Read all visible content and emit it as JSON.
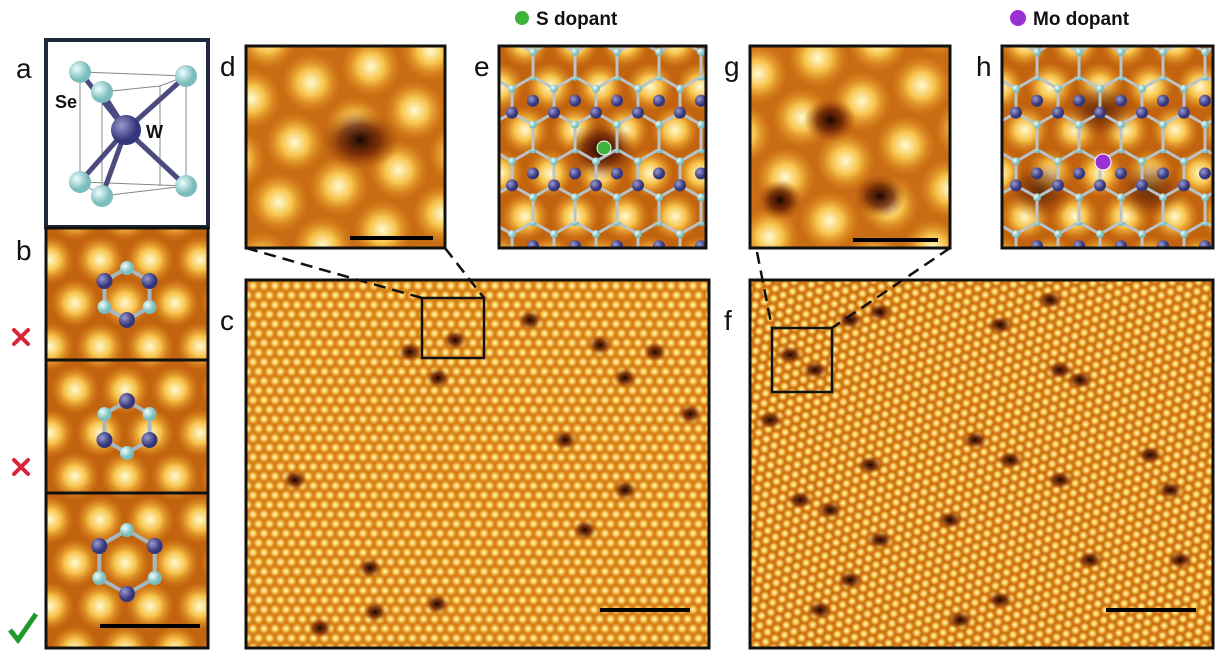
{
  "panel_labels": [
    "a",
    "b",
    "c",
    "d",
    "e",
    "f",
    "g",
    "h"
  ],
  "structure_labels": [
    "Se",
    "W"
  ],
  "legend": [
    {
      "label": "S dopant",
      "color": "#3db33a"
    },
    {
      "label": "Mo dopant",
      "color": "#9a2fd4"
    }
  ]
}
